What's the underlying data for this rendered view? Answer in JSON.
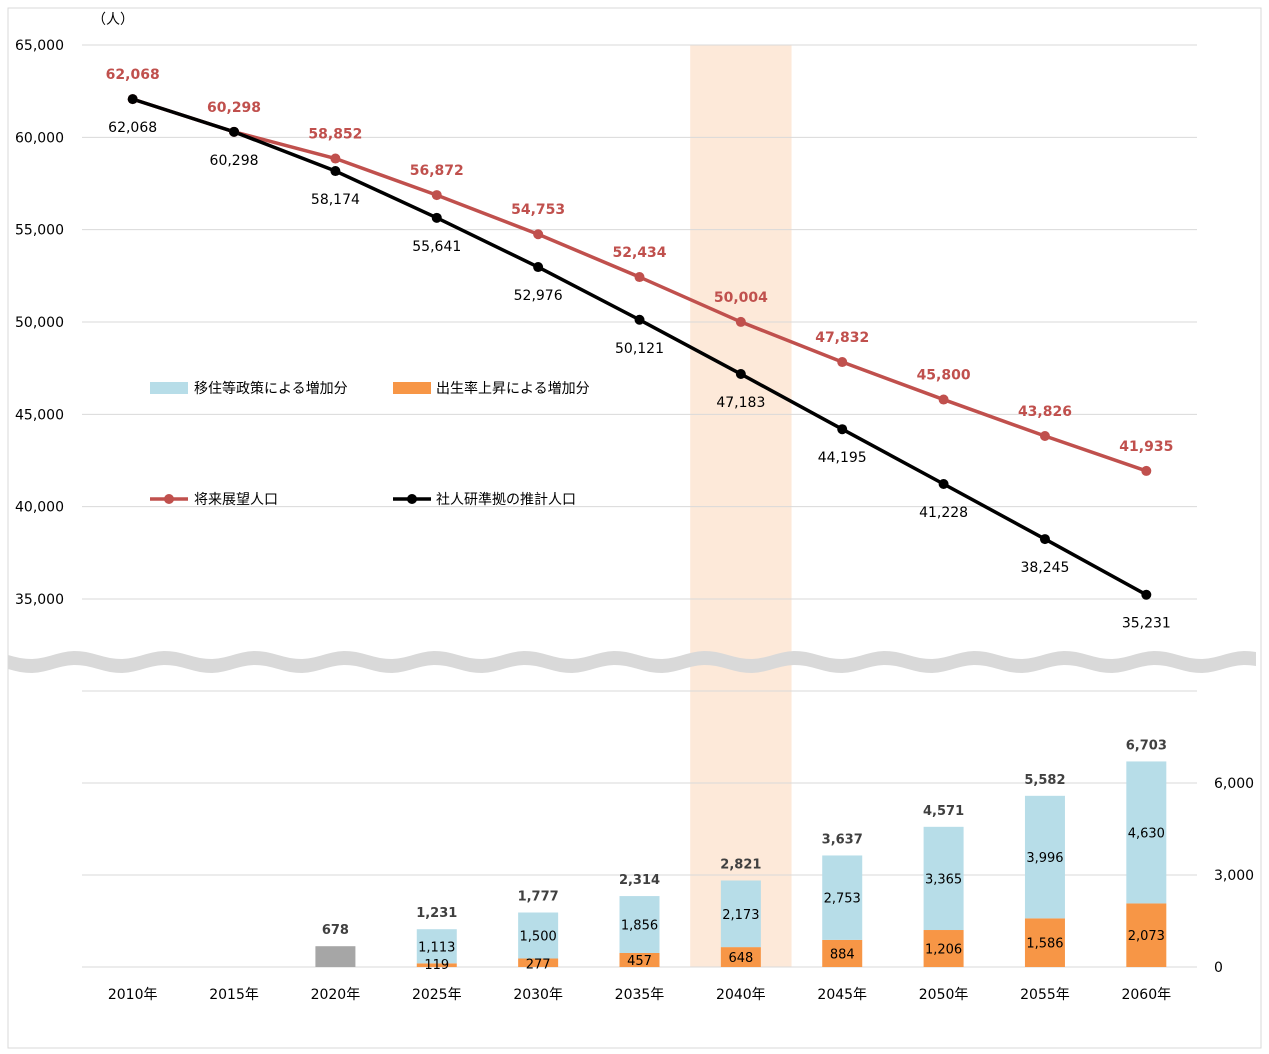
{
  "colors": {
    "projection_line": "#C0504D",
    "ipss_line": "#000000",
    "migration_bar": "#B7DDE8",
    "birthrate_bar": "#F79646",
    "actual_bar": "#A6A6A6",
    "highlight_band": "#FDE9D9",
    "grid": "#D9D9D9"
  },
  "chart_data": {
    "type": "line",
    "unit_label": "（人）",
    "x": [
      "2010年",
      "2015年",
      "2020年",
      "2025年",
      "2030年",
      "2035年",
      "2040年",
      "2045年",
      "2050年",
      "2055年",
      "2060年"
    ],
    "highlight_category": "2040年",
    "upper_axis": {
      "ylim": [
        33000,
        65000
      ],
      "broken_axis": true,
      "ticks": [
        "35,000",
        "40,000",
        "45,000",
        "50,000",
        "55,000",
        "60,000",
        "65,000"
      ],
      "tick_values": [
        35000,
        40000,
        45000,
        50000,
        55000,
        60000,
        65000
      ],
      "grid": true
    },
    "lower_axis": {
      "ylim": [
        0,
        9000
      ],
      "position": "right",
      "ticks": [
        "0",
        "3,000",
        "6,000"
      ],
      "tick_values": [
        0,
        3000,
        6000
      ],
      "grid": true
    },
    "series": [
      {
        "name": "将来展望人口",
        "type": "line",
        "values": [
          62068,
          60298,
          58852,
          56872,
          54753,
          52434,
          50004,
          47832,
          45800,
          43826,
          41935
        ],
        "labels": [
          "62,068",
          "60,298",
          "58,852",
          "56,872",
          "54,753",
          "52,434",
          "50,004",
          "47,832",
          "45,800",
          "43,826",
          "41,935"
        ]
      },
      {
        "name": "社人研準拠の推計人口",
        "type": "line",
        "values": [
          62068,
          60298,
          58174,
          55641,
          52976,
          50121,
          47183,
          44195,
          41228,
          38245,
          35231
        ],
        "labels": [
          "62,068",
          "60,298",
          "58,174",
          "55,641",
          "52,976",
          "50,121",
          "47,183",
          "44,195",
          "41,228",
          "38,245",
          "35,231"
        ]
      }
    ],
    "bar_series": [
      {
        "name": "出生率上昇による増加分",
        "type": "stacked-bar",
        "values": [
          null,
          null,
          null,
          119,
          277,
          457,
          648,
          884,
          1206,
          1586,
          2073
        ],
        "labels": [
          "",
          "",
          "",
          "119",
          "277",
          "457",
          "648",
          "884",
          "1,206",
          "1,586",
          "2,073"
        ]
      },
      {
        "name": "移住等政策による増加分",
        "type": "stacked-bar",
        "values": [
          null,
          null,
          null,
          1113,
          1500,
          1856,
          2173,
          2753,
          3365,
          3996,
          4630
        ],
        "labels": [
          "",
          "",
          "",
          "1,113",
          "1,500",
          "1,856",
          "2,173",
          "2,753",
          "3,365",
          "3,996",
          "4,630"
        ]
      }
    ],
    "actual_bar": {
      "category": "2020年",
      "value": 678,
      "label": "678"
    },
    "bar_totals": {
      "values": [
        null,
        null,
        678,
        1231,
        1777,
        2314,
        2821,
        3637,
        4571,
        5582,
        6703
      ],
      "labels": [
        "",
        "",
        "678",
        "1,231",
        "1,777",
        "2,314",
        "2,821",
        "3,637",
        "4,571",
        "5,582",
        "6,703"
      ]
    },
    "legend": {
      "placement": "middle-left",
      "bar_items": [
        "移住等政策による増加分",
        "出生率上昇による増加分"
      ],
      "line_items": [
        "将来展望人口",
        "社人研準拠の推計人口"
      ]
    }
  }
}
